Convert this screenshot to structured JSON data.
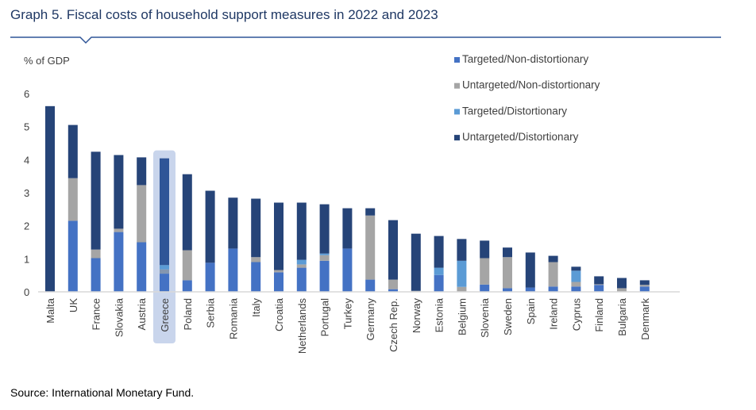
{
  "header": {
    "title": "Graph 5. Fiscal costs of household support measures in 2022 and 2023"
  },
  "footer": {
    "source": "Source: International Monetary Fund."
  },
  "chart_data": {
    "type": "bar",
    "stacked": true,
    "title": "Graph 5. Fiscal costs of household support measures in 2022 and 2023",
    "ylabel": "% of GDP",
    "xlabel": "",
    "ylim": [
      0,
      6
    ],
    "yticks": [
      0,
      1,
      2,
      3,
      4,
      5,
      6
    ],
    "grid": false,
    "legend_position": "top-right",
    "highlight": "Greece",
    "categories": [
      "Malta",
      "UK",
      "France",
      "Slovakia",
      "Austria",
      "Greece",
      "Poland",
      "Serbia",
      "Romania",
      "Italy",
      "Croatia",
      "Netherlands",
      "Portugal",
      "Turkey",
      "Germany",
      "Czech Rep.",
      "Norway",
      "Estonia",
      "Belgium",
      "Slovenia",
      "Sweden",
      "Spain",
      "Ireland",
      "Cyprus",
      "Finland",
      "Bulgaria",
      "Denmark"
    ],
    "series": [
      {
        "name": "Targeted/Non-distortionary",
        "color": "#4472c4",
        "values": [
          0,
          2.15,
          1.02,
          1.81,
          1.5,
          0.55,
          0.35,
          0.88,
          1.31,
          0.9,
          0.59,
          0.73,
          0.94,
          1.31,
          0.37,
          0.08,
          0,
          0.51,
          0,
          0.22,
          0.11,
          0.13,
          0.16,
          0.16,
          0.21,
          0,
          0.16
        ]
      },
      {
        "name": "Untargeted/Non-distortionary",
        "color": "#a5a5a5",
        "values": [
          0,
          1.29,
          0.26,
          0.1,
          1.73,
          0.13,
          0.91,
          0,
          0,
          0.15,
          0.07,
          0.1,
          0.17,
          0,
          1.94,
          0.29,
          0.03,
          0,
          0.15,
          0.8,
          0.94,
          0,
          0.74,
          0.14,
          0.02,
          0.11,
          0.05
        ]
      },
      {
        "name": "Targeted/Distortionary",
        "color": "#5b9bd5",
        "values": [
          0,
          0,
          0,
          0,
          0,
          0.13,
          0,
          0,
          0,
          0,
          0,
          0.14,
          0.05,
          0,
          0,
          0,
          0,
          0.22,
          0.79,
          0,
          0,
          0,
          0,
          0.34,
          0,
          0,
          0
        ]
      },
      {
        "name": "Untargeted/Distortionary",
        "color": "#264478",
        "values": [
          5.62,
          1.61,
          2.96,
          2.23,
          0.84,
          3.23,
          2.3,
          2.18,
          1.54,
          1.77,
          2.04,
          1.73,
          1.49,
          1.22,
          0.22,
          1.8,
          1.73,
          0.96,
          0.66,
          0.53,
          0.29,
          1.06,
          0.19,
          0.12,
          0.24,
          0.31,
          0.14
        ]
      }
    ]
  }
}
